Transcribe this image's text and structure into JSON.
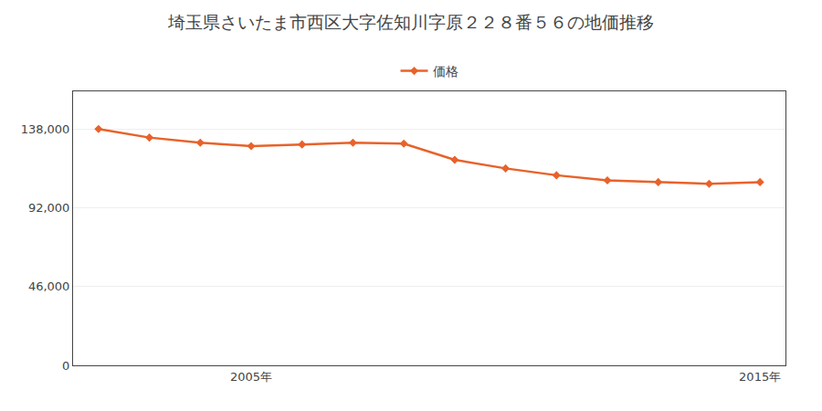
{
  "chart_data": {
    "type": "line",
    "title": "埼玉県さいたま市西区大字佐知川字原２２８番５６の地価推移",
    "x": [
      2002,
      2003,
      2004,
      2005,
      2006,
      2007,
      2008,
      2009,
      2010,
      2011,
      2012,
      2013,
      2014,
      2015
    ],
    "series": [
      {
        "name": "価格",
        "color": "#e8622a",
        "marker": "diamond",
        "values": [
          138000,
          133000,
          130000,
          128000,
          129000,
          130000,
          129500,
          120000,
          115000,
          111000,
          108000,
          107000,
          106000,
          107000
        ]
      }
    ],
    "xlim": [
      2001.5,
      2015.5
    ],
    "xticks": [
      {
        "value": 2005,
        "label": "2005年"
      },
      {
        "value": 2015,
        "label": "2015年"
      }
    ],
    "ylim": [
      0,
      160000
    ],
    "yticks": [
      0,
      {
        "value": 46000,
        "label": "46,000"
      },
      {
        "value": 92000,
        "label": "92,000"
      },
      {
        "value": 138000,
        "label": "138,000"
      }
    ],
    "grid": "y",
    "legend": "top"
  }
}
